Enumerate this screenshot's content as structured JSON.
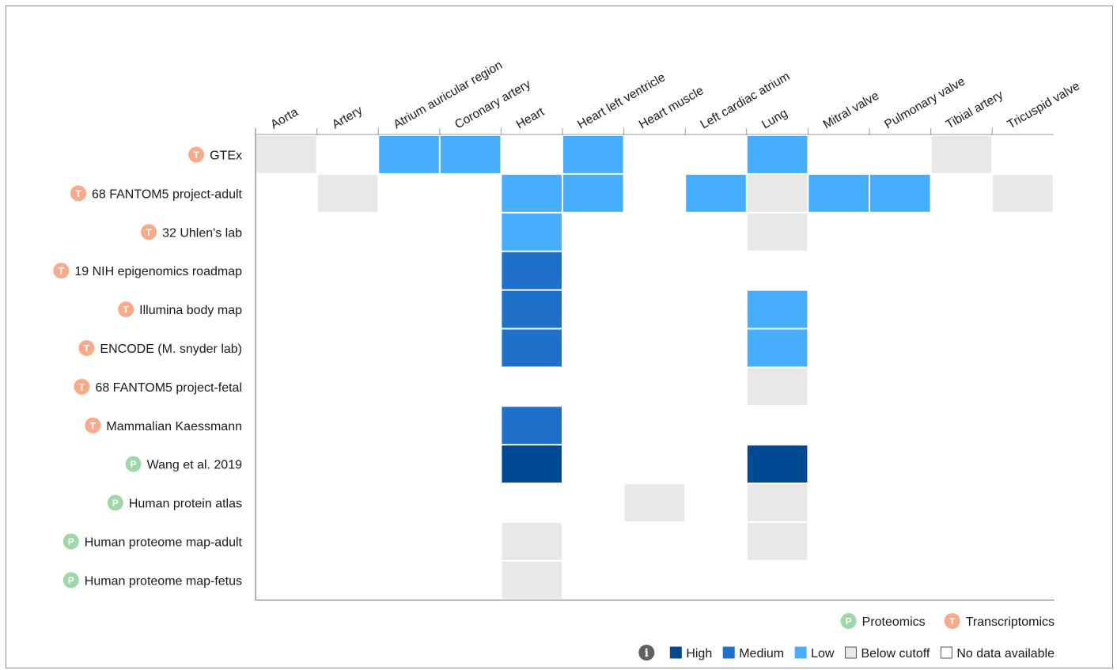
{
  "colors": {
    "high": "#004a93",
    "medium": "#1f70c8",
    "low": "#47aefd",
    "below_cutoff": "#e8e8e8",
    "no_data": "#ffffff",
    "proteomics_badge": "#9ed8a8",
    "transcriptomics_badge": "#f8ab8a"
  },
  "chart_data": {
    "type": "heatmap",
    "columns": [
      "Aorta",
      "Artery",
      "Atrium auricular region",
      "Coronary artery",
      "Heart",
      "Heart left ventricle",
      "Heart muscle",
      "Left cardiac atrium",
      "Lung",
      "Mitral valve",
      "Pulmonary valve",
      "Tibial artery",
      "Tricuspid valve"
    ],
    "rows": [
      {
        "label": "GTEx",
        "type": "T",
        "values": [
          "below",
          "none",
          "low",
          "low",
          "none",
          "low",
          "none",
          "none",
          "low",
          "none",
          "none",
          "below",
          "none"
        ]
      },
      {
        "label": "68 FANTOM5 project-adult",
        "type": "T",
        "values": [
          "none",
          "below",
          "none",
          "none",
          "low",
          "low",
          "none",
          "low",
          "below",
          "low",
          "low",
          "none",
          "below"
        ]
      },
      {
        "label": "32 Uhlen's lab",
        "type": "T",
        "values": [
          "none",
          "none",
          "none",
          "none",
          "low",
          "none",
          "none",
          "none",
          "below",
          "none",
          "none",
          "none",
          "none"
        ]
      },
      {
        "label": "19 NIH epigenomics roadmap",
        "type": "T",
        "values": [
          "none",
          "none",
          "none",
          "none",
          "medium",
          "none",
          "none",
          "none",
          "none",
          "none",
          "none",
          "none",
          "none"
        ]
      },
      {
        "label": "Illumina body map",
        "type": "T",
        "values": [
          "none",
          "none",
          "none",
          "none",
          "medium",
          "none",
          "none",
          "none",
          "low",
          "none",
          "none",
          "none",
          "none"
        ]
      },
      {
        "label": "ENCODE (M. snyder lab)",
        "type": "T",
        "values": [
          "none",
          "none",
          "none",
          "none",
          "medium",
          "none",
          "none",
          "none",
          "low",
          "none",
          "none",
          "none",
          "none"
        ]
      },
      {
        "label": "68 FANTOM5 project-fetal",
        "type": "T",
        "values": [
          "none",
          "none",
          "none",
          "none",
          "none",
          "none",
          "none",
          "none",
          "below",
          "none",
          "none",
          "none",
          "none"
        ]
      },
      {
        "label": "Mammalian Kaessmann",
        "type": "T",
        "values": [
          "none",
          "none",
          "none",
          "none",
          "medium",
          "none",
          "none",
          "none",
          "none",
          "none",
          "none",
          "none",
          "none"
        ]
      },
      {
        "label": "Wang et al. 2019",
        "type": "P",
        "values": [
          "none",
          "none",
          "none",
          "none",
          "high",
          "none",
          "none",
          "none",
          "high",
          "none",
          "none",
          "none",
          "none"
        ]
      },
      {
        "label": "Human protein atlas",
        "type": "P",
        "values": [
          "none",
          "none",
          "none",
          "none",
          "none",
          "none",
          "below",
          "none",
          "below",
          "none",
          "none",
          "none",
          "none"
        ]
      },
      {
        "label": "Human proteome map-adult",
        "type": "P",
        "values": [
          "none",
          "none",
          "none",
          "none",
          "below",
          "none",
          "none",
          "none",
          "below",
          "none",
          "none",
          "none",
          "none"
        ]
      },
      {
        "label": "Human proteome map-fetus",
        "type": "P",
        "values": [
          "none",
          "none",
          "none",
          "none",
          "below",
          "none",
          "none",
          "none",
          "none",
          "none",
          "none",
          "none",
          "none"
        ]
      }
    ]
  },
  "legend": {
    "types": [
      {
        "badge": "P",
        "label": "Proteomics"
      },
      {
        "badge": "T",
        "label": "Transcriptomics"
      }
    ],
    "levels": [
      {
        "key": "high",
        "label": "High"
      },
      {
        "key": "medium",
        "label": "Medium"
      },
      {
        "key": "low",
        "label": "Low"
      },
      {
        "key": "below",
        "label": "Below cutoff"
      },
      {
        "key": "none",
        "label": "No data available"
      }
    ],
    "info_icon": "info-icon"
  }
}
